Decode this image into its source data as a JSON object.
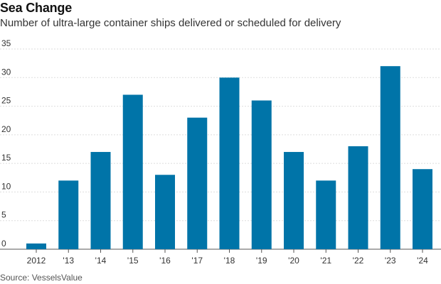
{
  "chart_data": {
    "type": "bar",
    "title": "Sea Change",
    "subtitle": "Number of ultra-large container ships delivered or scheduled for delivery",
    "source": "Source: VesselsValue",
    "categories": [
      "2012",
      "'13",
      "'14",
      "'15",
      "'16",
      "'17",
      "'18",
      "'19",
      "'20",
      "'21",
      "'22",
      "'23",
      "'24"
    ],
    "values": [
      1,
      12,
      17,
      27,
      13,
      23,
      30,
      26,
      17,
      12,
      18,
      32,
      14
    ],
    "ylim": [
      0,
      35
    ],
    "yticks": [
      0,
      5,
      10,
      15,
      20,
      25,
      30,
      35
    ],
    "grid": true,
    "bar_color": "#0074a8",
    "grid_color": "#dddddd"
  }
}
